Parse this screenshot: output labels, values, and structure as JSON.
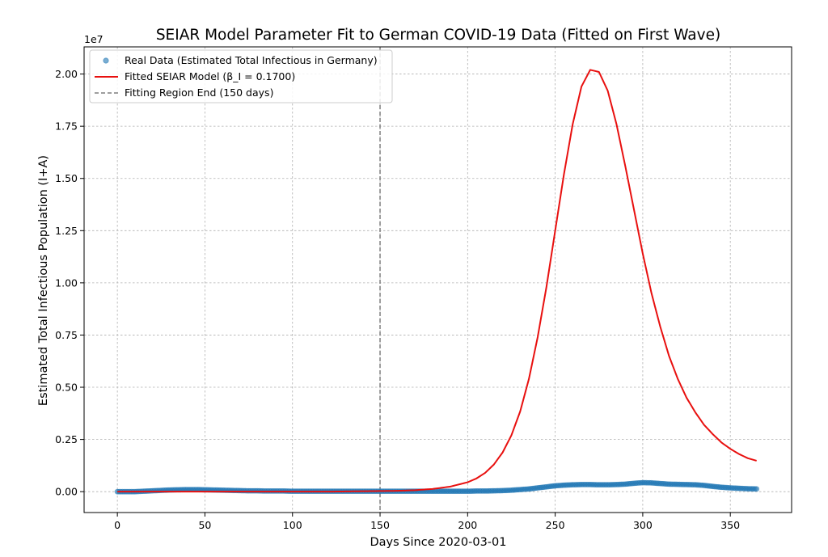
{
  "chart_data": {
    "type": "line",
    "title": "SEIAR Model Parameter Fit to German COVID-19 Data (Fitted on First Wave)",
    "xlabel": "Days Since 2020-03-01",
    "ylabel": "Estimated Total Infectious Population (I+A)",
    "y_offset_label": "1e7",
    "y_scale": 10000000,
    "xlim": [
      -19,
      385
    ],
    "ylim": [
      -0.1,
      2.13
    ],
    "x_ticks": [
      0,
      50,
      100,
      150,
      200,
      250,
      300,
      350
    ],
    "x_tick_labels": [
      "0",
      "50",
      "100",
      "150",
      "200",
      "250",
      "300",
      "350"
    ],
    "y_ticks": [
      0.0,
      0.25,
      0.5,
      0.75,
      1.0,
      1.25,
      1.5,
      1.75,
      2.0
    ],
    "y_tick_labels": [
      "0.00",
      "0.25",
      "0.50",
      "0.75",
      "1.00",
      "1.25",
      "1.50",
      "1.75",
      "2.00"
    ],
    "grid": true,
    "legend_position": "top-left",
    "vline": {
      "x": 150,
      "label": "Fitting Region End (150 days)",
      "color": "#7f7f7f"
    },
    "series": [
      {
        "name": "Real Data (Estimated Total Infectious in Germany)",
        "kind": "scatter",
        "color": "#1f77b4",
        "x": [
          0,
          5,
          10,
          15,
          20,
          25,
          30,
          35,
          40,
          45,
          50,
          55,
          60,
          65,
          70,
          75,
          80,
          85,
          90,
          95,
          100,
          105,
          110,
          115,
          120,
          125,
          130,
          135,
          140,
          145,
          150,
          155,
          160,
          165,
          170,
          175,
          180,
          185,
          190,
          195,
          200,
          205,
          210,
          215,
          220,
          225,
          230,
          235,
          240,
          245,
          250,
          255,
          260,
          265,
          270,
          275,
          280,
          285,
          290,
          295,
          300,
          305,
          310,
          315,
          320,
          325,
          330,
          335,
          340,
          345,
          350,
          355,
          360,
          365
        ],
        "y": [
          0.0,
          0.0,
          0.0,
          0.002,
          0.004,
          0.006,
          0.008,
          0.009,
          0.01,
          0.01,
          0.009,
          0.008,
          0.007,
          0.006,
          0.005,
          0.004,
          0.004,
          0.003,
          0.003,
          0.003,
          0.002,
          0.002,
          0.002,
          0.002,
          0.002,
          0.002,
          0.002,
          0.002,
          0.002,
          0.002,
          0.002,
          0.002,
          0.002,
          0.002,
          0.002,
          0.002,
          0.002,
          0.002,
          0.002,
          0.002,
          0.002,
          0.003,
          0.003,
          0.004,
          0.005,
          0.007,
          0.01,
          0.013,
          0.018,
          0.023,
          0.028,
          0.031,
          0.033,
          0.034,
          0.034,
          0.033,
          0.033,
          0.034,
          0.036,
          0.04,
          0.043,
          0.042,
          0.039,
          0.036,
          0.035,
          0.034,
          0.033,
          0.03,
          0.025,
          0.021,
          0.018,
          0.016,
          0.014,
          0.013
        ]
      },
      {
        "name": "Fitted SEIAR Model (β_I = 0.1700)",
        "kind": "line",
        "color": "#e8100f",
        "x": [
          0,
          10,
          20,
          30,
          40,
          50,
          60,
          70,
          80,
          90,
          100,
          110,
          120,
          130,
          140,
          150,
          160,
          170,
          180,
          190,
          200,
          205,
          210,
          215,
          220,
          225,
          230,
          235,
          240,
          245,
          250,
          255,
          260,
          265,
          270,
          275,
          280,
          285,
          290,
          295,
          300,
          305,
          310,
          315,
          320,
          325,
          330,
          335,
          340,
          345,
          350,
          355,
          360,
          365
        ],
        "y": [
          0.0,
          0.0,
          0.0,
          0.0,
          0.0,
          0.0,
          0.0,
          0.0,
          0.0,
          0.0,
          0.0,
          0.0,
          0.0,
          0.001,
          0.002,
          0.003,
          0.004,
          0.007,
          0.013,
          0.024,
          0.045,
          0.063,
          0.09,
          0.13,
          0.188,
          0.27,
          0.384,
          0.54,
          0.74,
          0.98,
          1.25,
          1.52,
          1.76,
          1.94,
          2.02,
          2.01,
          1.92,
          1.76,
          1.56,
          1.35,
          1.14,
          0.95,
          0.79,
          0.65,
          0.54,
          0.45,
          0.38,
          0.32,
          0.275,
          0.235,
          0.205,
          0.18,
          0.16,
          0.148
        ]
      }
    ]
  }
}
